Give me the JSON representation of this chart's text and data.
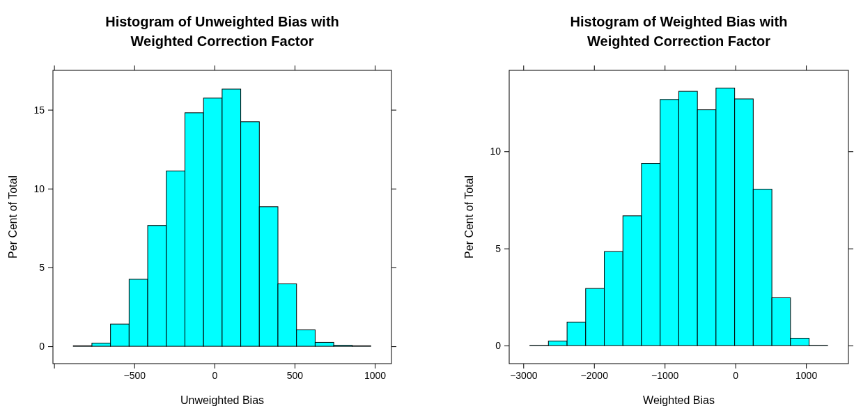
{
  "chart_data": [
    {
      "type": "histogram",
      "title": "Histogram of Unweighted Bias with Weighted Correction Factor",
      "xlabel": "Unweighted Bias",
      "ylabel": "Per Cent of Total",
      "bins": [
        -880,
        -764,
        -648,
        -532,
        -416,
        -300,
        -184,
        -68,
        48,
        164,
        280,
        396,
        512,
        628,
        744,
        859,
        975
      ],
      "values": [
        0.03,
        0.2,
        1.41,
        4.25,
        7.66,
        11.12,
        14.81,
        15.74,
        16.31,
        14.24,
        8.85,
        3.96,
        1.04,
        0.25,
        0.06,
        0.03
      ],
      "color": "#00ffff",
      "xlim": [
        -1007,
        1104
      ],
      "xticks": [
        {
          "value": -1000,
          "label": null
        },
        -500,
        0,
        500,
        1000
      ],
      "ylim": [
        -1.1,
        17.5
      ],
      "yticks": [
        0,
        5,
        10,
        15
      ],
      "grid": false
    },
    {
      "type": "histogram",
      "title": "Histogram of Weighted Bias with Weighted Correction Factor",
      "xlabel": "Weighted Bias",
      "ylabel": "Per Cent of Total",
      "bins": [
        -2908,
        -2645,
        -2381,
        -2118,
        -1854,
        -1591,
        -1328,
        -1064,
        -801,
        -537,
        -274,
        -10,
        253,
        517,
        780,
        1043,
        1306
      ],
      "values": [
        0.01,
        0.23,
        1.21,
        2.94,
        4.84,
        6.68,
        9.38,
        12.67,
        13.09,
        12.14,
        13.26,
        12.7,
        8.05,
        2.46,
        0.38,
        0.01
      ],
      "color": "#00ffff",
      "xlim": [
        -3200,
        1600
      ],
      "xticks": [
        -3000,
        -2000,
        -1000,
        0,
        1000
      ],
      "ylim": [
        -0.93,
        14.17
      ],
      "yticks": [
        0,
        5,
        10
      ],
      "grid": false
    }
  ]
}
